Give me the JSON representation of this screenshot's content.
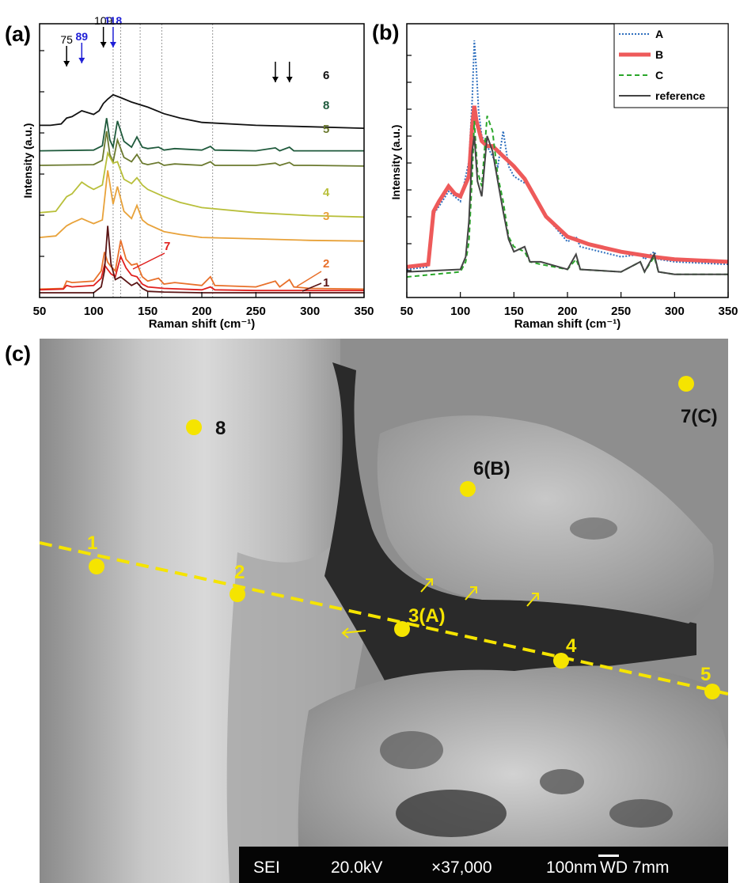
{
  "panels": {
    "a": "(a)",
    "b": "(b)",
    "c": "(c)"
  },
  "chart_data": [
    {
      "type": "line",
      "panel": "(a)",
      "xlabel": "Raman shift (cm⁻¹)",
      "ylabel": "Intensity (a.u.)",
      "xlim": [
        50,
        350
      ],
      "xticks": [
        50,
        100,
        150,
        200,
        250,
        300,
        350
      ],
      "yticks_shown": false,
      "vertical_reference_lines_at": [
        118,
        125,
        143,
        163,
        210
      ],
      "peak_markers": [
        {
          "label": "75",
          "x": 75,
          "color": "#000000"
        },
        {
          "label": "89",
          "x": 89,
          "color": "#1f1fd6"
        },
        {
          "label": "109",
          "x": 109,
          "color": "#000000"
        },
        {
          "label": "118",
          "x": 118,
          "color": "#1f1fd6"
        },
        {
          "label": "",
          "x": 268,
          "color": "#000000"
        },
        {
          "label": "",
          "x": 281,
          "color": "#000000"
        }
      ],
      "series": [
        {
          "name": "6",
          "color": "#111111",
          "x": [
            50,
            60,
            70,
            75,
            80,
            89,
            100,
            105,
            109,
            113,
            118,
            125,
            135,
            150,
            165,
            180,
            200,
            250,
            300,
            350
          ],
          "values": [
            2.3,
            2.3,
            2.32,
            2.4,
            2.42,
            2.5,
            2.45,
            2.5,
            2.6,
            2.66,
            2.72,
            2.68,
            2.62,
            2.55,
            2.46,
            2.4,
            2.34,
            2.3,
            2.28,
            2.26
          ]
        },
        {
          "name": "8",
          "color": "#1f5a3c",
          "x": [
            50,
            100,
            108,
            112,
            115,
            118,
            122,
            128,
            135,
            140,
            145,
            150,
            160,
            165,
            175,
            200,
            208,
            212,
            250,
            268,
            272,
            281,
            285,
            300,
            350
          ],
          "values": [
            1.95,
            1.96,
            2.02,
            2.4,
            2.1,
            2.0,
            2.36,
            2.08,
            2.0,
            2.14,
            2.0,
            1.98,
            2.0,
            1.96,
            1.98,
            1.96,
            2.01,
            1.96,
            1.95,
            1.99,
            1.95,
            2.0,
            1.95,
            1.95,
            1.95
          ]
        },
        {
          "name": "5",
          "color": "#6b7a2f",
          "x": [
            50,
            100,
            108,
            112,
            115,
            118,
            122,
            128,
            135,
            140,
            145,
            150,
            160,
            165,
            175,
            200,
            208,
            212,
            250,
            268,
            272,
            281,
            285,
            300,
            350
          ],
          "values": [
            1.75,
            1.76,
            1.82,
            2.22,
            1.9,
            1.8,
            2.1,
            1.86,
            1.8,
            1.9,
            1.78,
            1.76,
            1.79,
            1.75,
            1.77,
            1.75,
            1.8,
            1.75,
            1.75,
            1.78,
            1.75,
            1.79,
            1.75,
            1.75,
            1.74
          ]
        },
        {
          "name": "4",
          "color": "#b8bf3a",
          "x": [
            50,
            65,
            75,
            80,
            89,
            95,
            100,
            108,
            113,
            118,
            122,
            128,
            135,
            140,
            145,
            150,
            165,
            180,
            200,
            250,
            300,
            350
          ],
          "values": [
            1.1,
            1.12,
            1.32,
            1.36,
            1.52,
            1.46,
            1.42,
            1.48,
            1.92,
            1.78,
            1.8,
            1.56,
            1.5,
            1.58,
            1.48,
            1.42,
            1.32,
            1.24,
            1.17,
            1.1,
            1.06,
            1.04
          ]
        },
        {
          "name": "3",
          "color": "#e8a23a",
          "x": [
            50,
            65,
            75,
            80,
            89,
            95,
            100,
            108,
            113,
            118,
            122,
            128,
            135,
            140,
            145,
            150,
            165,
            180,
            200,
            250,
            300,
            350
          ],
          "values": [
            0.76,
            0.78,
            0.92,
            0.96,
            1.02,
            0.98,
            0.95,
            1.0,
            1.68,
            1.22,
            1.46,
            1.12,
            1.02,
            1.2,
            1.0,
            0.94,
            0.84,
            0.8,
            0.76,
            0.74,
            0.72,
            0.71
          ]
        },
        {
          "name": "2",
          "color": "#e8702a",
          "x": [
            50,
            72,
            75,
            80,
            100,
            107,
            110,
            113,
            116,
            120,
            125,
            130,
            135,
            140,
            145,
            150,
            160,
            165,
            175,
            200,
            208,
            212,
            250,
            268,
            272,
            281,
            285,
            300,
            350
          ],
          "values": [
            0.05,
            0.06,
            0.16,
            0.14,
            0.16,
            0.3,
            0.56,
            0.42,
            0.36,
            0.3,
            0.72,
            0.46,
            0.38,
            0.4,
            0.22,
            0.16,
            0.2,
            0.12,
            0.14,
            0.1,
            0.22,
            0.1,
            0.08,
            0.16,
            0.08,
            0.18,
            0.08,
            0.06,
            0.05
          ]
        },
        {
          "name": "7",
          "color": "#e0201e",
          "x": [
            50,
            72,
            75,
            80,
            100,
            107,
            110,
            113,
            116,
            120,
            125,
            130,
            135,
            140,
            145,
            150,
            165,
            200,
            208,
            212,
            250,
            300,
            350
          ],
          "values": [
            0.04,
            0.05,
            0.1,
            0.08,
            0.1,
            0.2,
            0.38,
            0.32,
            0.26,
            0.22,
            0.5,
            0.34,
            0.24,
            0.22,
            0.12,
            0.08,
            0.06,
            0.04,
            0.08,
            0.04,
            0.03,
            0.03,
            0.03
          ]
        },
        {
          "name": "1",
          "color": "#5a1414",
          "x": [
            50,
            100,
            107,
            110,
            113,
            116,
            120,
            125,
            130,
            135,
            140,
            145,
            150,
            165,
            200,
            250,
            300,
            350
          ],
          "values": [
            0.0,
            0.0,
            0.08,
            0.3,
            0.92,
            0.4,
            0.18,
            0.22,
            0.16,
            0.1,
            0.14,
            0.06,
            0.02,
            0.01,
            0.0,
            0.0,
            0.0,
            0.0
          ]
        }
      ]
    },
    {
      "type": "line",
      "panel": "(b)",
      "xlabel": "Raman shift (cm⁻¹)",
      "ylabel": "Intensity (a.u.)",
      "xlim": [
        50,
        350
      ],
      "ylim": [
        0,
        1
      ],
      "xticks": [
        50,
        100,
        150,
        200,
        250,
        300,
        350
      ],
      "legend_position": "top-right",
      "series": [
        {
          "name": "A",
          "color": "#2e6fbe",
          "style": "dotted",
          "x": [
            50,
            70,
            75,
            80,
            89,
            100,
            108,
            111,
            113,
            115,
            117,
            120,
            125,
            130,
            135,
            140,
            145,
            150,
            165,
            180,
            200,
            208,
            212,
            250,
            268,
            272,
            281,
            285,
            300,
            350
          ],
          "values": [
            0.03,
            0.04,
            0.25,
            0.28,
            0.34,
            0.3,
            0.46,
            0.7,
            0.94,
            0.82,
            0.66,
            0.56,
            0.52,
            0.48,
            0.44,
            0.58,
            0.44,
            0.4,
            0.36,
            0.24,
            0.14,
            0.16,
            0.12,
            0.08,
            0.09,
            0.07,
            0.1,
            0.07,
            0.06,
            0.05
          ]
        },
        {
          "name": "B",
          "color": "#ee5a5a",
          "style": "solid-thick",
          "x": [
            50,
            70,
            75,
            80,
            89,
            95,
            100,
            108,
            111,
            113,
            115,
            120,
            125,
            130,
            140,
            150,
            160,
            180,
            200,
            220,
            250,
            280,
            300,
            350
          ],
          "values": [
            0.04,
            0.05,
            0.26,
            0.3,
            0.36,
            0.33,
            0.32,
            0.4,
            0.6,
            0.68,
            0.62,
            0.54,
            0.52,
            0.52,
            0.48,
            0.44,
            0.39,
            0.24,
            0.16,
            0.13,
            0.1,
            0.08,
            0.07,
            0.06
          ]
        },
        {
          "name": "C",
          "color": "#2aa62a",
          "style": "dashed",
          "x": [
            50,
            100,
            105,
            108,
            111,
            113,
            116,
            120,
            125,
            130,
            135,
            140,
            145,
            150,
            160,
            165,
            175,
            200,
            208,
            212,
            250,
            268,
            272,
            281,
            285,
            300,
            350
          ],
          "values": [
            0.0,
            0.02,
            0.06,
            0.14,
            0.4,
            0.62,
            0.42,
            0.36,
            0.64,
            0.58,
            0.4,
            0.3,
            0.16,
            0.12,
            0.1,
            0.06,
            0.05,
            0.03,
            0.07,
            0.03,
            0.02,
            0.06,
            0.02,
            0.08,
            0.02,
            0.01,
            0.01
          ]
        },
        {
          "name": "reference",
          "color": "#444444",
          "style": "solid",
          "x": [
            50,
            100,
            105,
            108,
            111,
            113,
            116,
            120,
            125,
            130,
            135,
            140,
            145,
            150,
            160,
            165,
            175,
            200,
            208,
            212,
            250,
            268,
            272,
            281,
            285,
            300,
            350
          ],
          "values": [
            0.02,
            0.03,
            0.08,
            0.22,
            0.5,
            0.56,
            0.38,
            0.32,
            0.56,
            0.5,
            0.38,
            0.26,
            0.15,
            0.1,
            0.12,
            0.06,
            0.06,
            0.03,
            0.09,
            0.03,
            0.02,
            0.06,
            0.02,
            0.09,
            0.02,
            0.01,
            0.01
          ]
        }
      ]
    }
  ],
  "sem_image": {
    "point_color": "#f5e400",
    "points": [
      {
        "label": "1"
      },
      {
        "label": "2"
      },
      {
        "label": "3(A)"
      },
      {
        "label": "4"
      },
      {
        "label": "5"
      },
      {
        "label": "6(B)"
      },
      {
        "label": "7(C)"
      },
      {
        "label": "8"
      }
    ],
    "info_bar": {
      "mode": "SEI",
      "voltage": "20.0kV",
      "magnification": "×37,000",
      "scale": "100nm",
      "wd": "WD 7mm"
    }
  }
}
